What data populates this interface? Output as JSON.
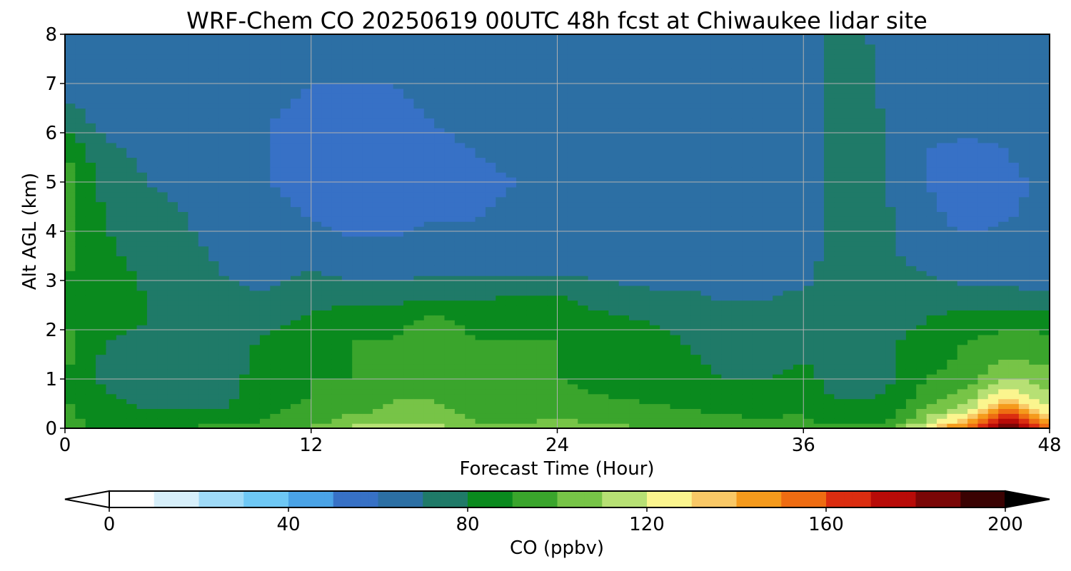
{
  "chart_data": {
    "type": "heatmap",
    "title": "WRF-Chem CO  20250619 00UTC 48h fcst at Chiwaukee lidar site",
    "xlabel": "Forecast Time (Hour)",
    "ylabel": "Alt AGL (km)",
    "xlim": [
      0,
      48
    ],
    "ylim": [
      0,
      8
    ],
    "xticks": [
      "0",
      "12",
      "24",
      "36",
      "48"
    ],
    "yticks": [
      "0",
      "1",
      "2",
      "3",
      "4",
      "5",
      "6",
      "7",
      "8"
    ],
    "grid": true,
    "colorbar": {
      "label": "CO  (ppbv)",
      "range": [
        0,
        200
      ],
      "ticks": [
        "0",
        "40",
        "80",
        "120",
        "160",
        "200"
      ],
      "extend": "both",
      "colors": [
        "#ffffff",
        "#d7effa",
        "#9fdaf7",
        "#6ec8f5",
        "#4aa3e6",
        "#3771c6",
        "#2c6fa4",
        "#1f7a68",
        "#0a8a1e",
        "#3aa52c",
        "#77c447",
        "#b7e074",
        "#fbf58e",
        "#f9c866",
        "#f59a1c",
        "#ee6c12",
        "#db2d10",
        "#b80b08",
        "#7a0606",
        "#3a0202",
        "#000000"
      ]
    },
    "profile_heights_km": [
      0,
      0.15,
      0.4,
      0.7,
      1.0,
      1.4,
      1.8,
      2.2,
      2.6,
      3.0,
      3.5,
      4.2,
      5.0,
      5.6,
      6.2,
      7.0,
      8.0
    ],
    "profiles": [
      {
        "hour": 0,
        "co_ppbv": [
          90,
          92,
          92,
          90,
          90,
          92,
          92,
          90,
          90,
          90,
          92,
          94,
          96,
          90,
          76,
          66,
          64
        ]
      },
      {
        "hour": 2,
        "co_ppbv": [
          90,
          88,
          84,
          80,
          78,
          78,
          80,
          84,
          86,
          86,
          82,
          80,
          76,
          72,
          66,
          64,
          62
        ]
      },
      {
        "hour": 4,
        "co_ppbv": [
          90,
          86,
          80,
          76,
          76,
          76,
          78,
          80,
          80,
          78,
          76,
          74,
          70,
          68,
          66,
          64,
          64
        ]
      },
      {
        "hour": 6,
        "co_ppbv": [
          92,
          84,
          80,
          78,
          80,
          78,
          76,
          76,
          76,
          74,
          72,
          70,
          68,
          68,
          66,
          66,
          64
        ]
      },
      {
        "hour": 8,
        "co_ppbv": [
          94,
          86,
          80,
          78,
          78,
          76,
          76,
          74,
          72,
          70,
          68,
          66,
          64,
          64,
          64,
          62,
          62
        ]
      },
      {
        "hour": 10,
        "co_ppbv": [
          96,
          92,
          88,
          86,
          84,
          84,
          82,
          76,
          72,
          68,
          64,
          62,
          60,
          60,
          60,
          62,
          62
        ]
      },
      {
        "hour": 12,
        "co_ppbv": [
          100,
          96,
          92,
          90,
          90,
          88,
          88,
          82,
          78,
          74,
          64,
          60,
          58,
          58,
          58,
          60,
          62
        ]
      },
      {
        "hour": 14,
        "co_ppbv": [
          112,
          104,
          96,
          92,
          90,
          90,
          90,
          88,
          76,
          70,
          62,
          58,
          56,
          56,
          58,
          60,
          62
        ]
      },
      {
        "hour": 16,
        "co_ppbv": [
          118,
          110,
          102,
          98,
          94,
          90,
          90,
          88,
          78,
          70,
          62,
          58,
          56,
          56,
          58,
          60,
          62
        ]
      },
      {
        "hour": 18,
        "co_ppbv": [
          116,
          108,
          102,
          98,
          92,
          92,
          94,
          92,
          80,
          72,
          64,
          60,
          58,
          58,
          60,
          62,
          62
        ]
      },
      {
        "hour": 20,
        "co_ppbv": [
          106,
          100,
          96,
          92,
          90,
          90,
          90,
          88,
          80,
          72,
          64,
          60,
          58,
          60,
          62,
          64,
          64
        ]
      },
      {
        "hour": 22,
        "co_ppbv": [
          106,
          98,
          94,
          90,
          90,
          90,
          90,
          88,
          82,
          72,
          64,
          62,
          60,
          62,
          64,
          64,
          62
        ]
      },
      {
        "hour": 24,
        "co_ppbv": [
          112,
          102,
          98,
          92,
          90,
          90,
          90,
          88,
          82,
          72,
          64,
          62,
          62,
          62,
          62,
          62,
          62
        ]
      },
      {
        "hour": 26,
        "co_ppbv": [
          106,
          98,
          94,
          90,
          88,
          88,
          86,
          84,
          76,
          70,
          66,
          64,
          62,
          62,
          62,
          62,
          62
        ]
      },
      {
        "hour": 28,
        "co_ppbv": [
          100,
          96,
          92,
          88,
          86,
          84,
          82,
          80,
          74,
          68,
          66,
          64,
          62,
          62,
          62,
          62,
          62
        ]
      },
      {
        "hour": 30,
        "co_ppbv": [
          98,
          94,
          90,
          86,
          84,
          82,
          80,
          78,
          72,
          68,
          66,
          64,
          62,
          62,
          62,
          62,
          60
        ]
      },
      {
        "hour": 32,
        "co_ppbv": [
          98,
          92,
          88,
          84,
          80,
          78,
          76,
          74,
          70,
          68,
          66,
          64,
          62,
          62,
          62,
          62,
          60
        ]
      },
      {
        "hour": 34,
        "co_ppbv": [
          98,
          92,
          86,
          82,
          80,
          76,
          74,
          72,
          70,
          68,
          66,
          64,
          62,
          62,
          62,
          62,
          60
        ]
      },
      {
        "hour": 36,
        "co_ppbv": [
          98,
          92,
          88,
          84,
          82,
          80,
          76,
          74,
          72,
          68,
          66,
          64,
          64,
          66,
          66,
          66,
          64
        ]
      },
      {
        "hour": 38,
        "co_ppbv": [
          96,
          86,
          82,
          78,
          76,
          76,
          76,
          76,
          76,
          76,
          76,
          76,
          76,
          76,
          76,
          76,
          76
        ]
      },
      {
        "hour": 40,
        "co_ppbv": [
          98,
          88,
          82,
          80,
          78,
          78,
          78,
          76,
          76,
          74,
          72,
          72,
          70,
          70,
          70,
          68,
          66
        ]
      },
      {
        "hour": 42,
        "co_ppbv": [
          126,
          112,
          100,
          94,
          90,
          86,
          84,
          80,
          76,
          72,
          66,
          62,
          60,
          60,
          62,
          64,
          64
        ]
      },
      {
        "hour": 44,
        "co_ppbv": [
          160,
          140,
          118,
          104,
          96,
          92,
          90,
          86,
          74,
          68,
          64,
          58,
          56,
          58,
          62,
          64,
          64
        ]
      },
      {
        "hour": 46,
        "co_ppbv": [
          196,
          176,
          150,
          126,
          112,
          100,
          92,
          88,
          74,
          68,
          64,
          60,
          58,
          60,
          62,
          64,
          64
        ]
      },
      {
        "hour": 48,
        "co_ppbv": [
          148,
          138,
          122,
          110,
          104,
          98,
          92,
          86,
          72,
          66,
          64,
          62,
          62,
          64,
          64,
          64,
          64
        ]
      }
    ]
  }
}
